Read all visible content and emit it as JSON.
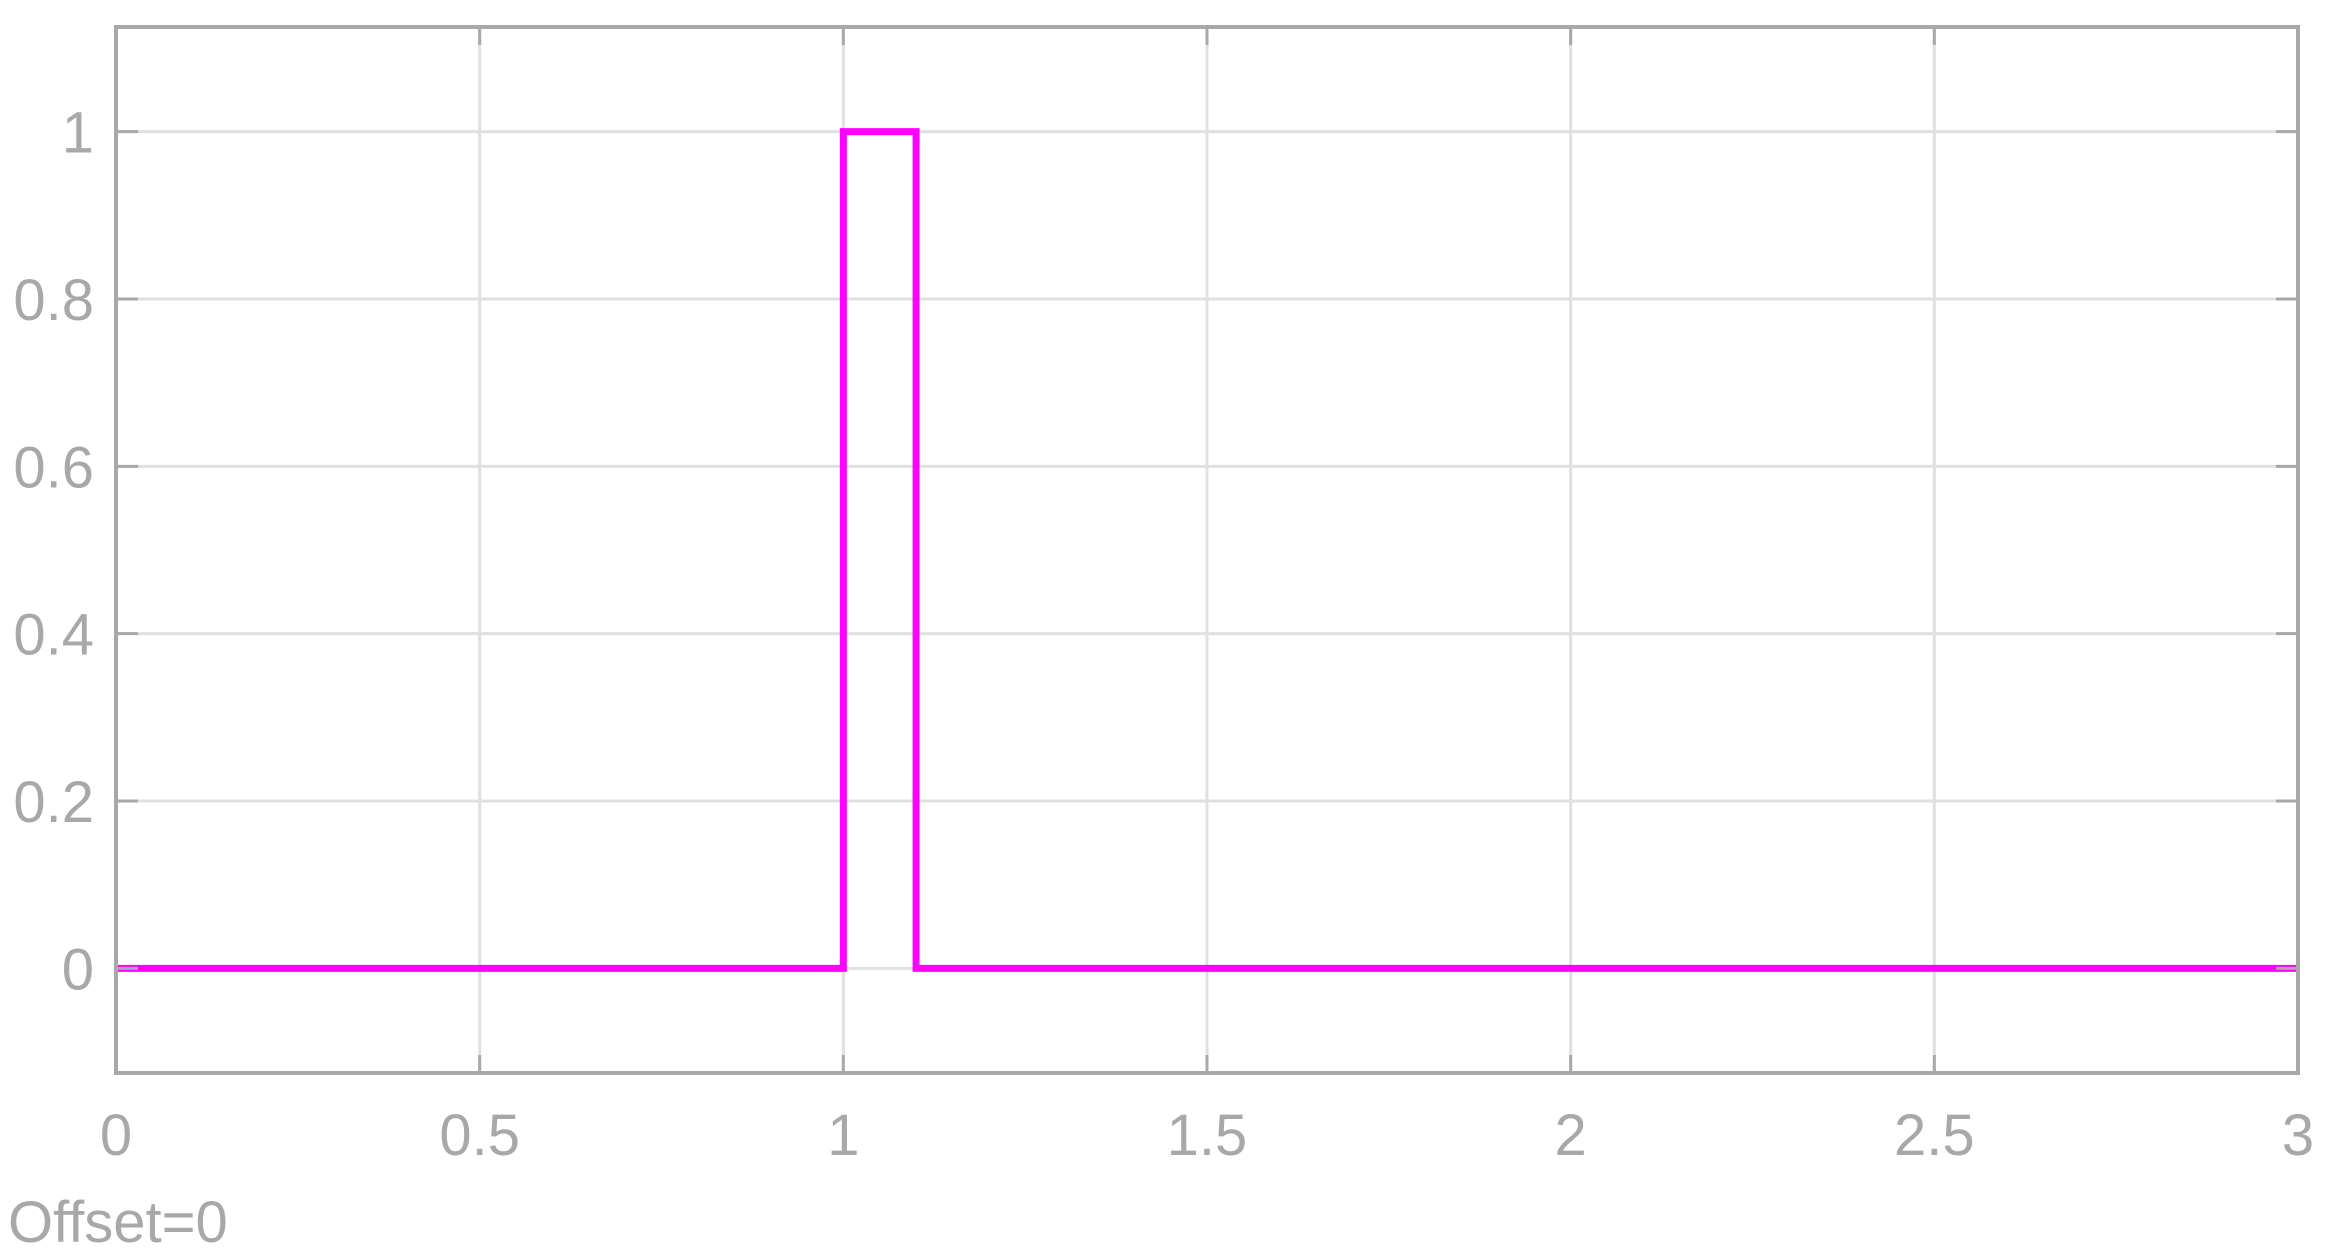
{
  "chart_data": {
    "type": "line",
    "step": true,
    "title": "",
    "xlabel": "",
    "ylabel": "",
    "xlim": [
      0,
      3
    ],
    "ylim": [
      -0.125,
      1.125
    ],
    "xticks": [
      0,
      0.5,
      1,
      1.5,
      2,
      2.5,
      3
    ],
    "xtick_labels": [
      "0",
      "0.5",
      "1",
      "1.5",
      "2",
      "2.5",
      "3"
    ],
    "yticks": [
      0,
      0.2,
      0.4,
      0.6,
      0.8,
      1
    ],
    "ytick_labels": [
      "0",
      "0.2",
      "0.4",
      "0.6",
      "0.8",
      "1"
    ],
    "grid": true,
    "series": [
      {
        "color": "#ff00ff",
        "x": [
          0,
          1,
          1,
          1.1,
          1.1,
          3
        ],
        "y": [
          0,
          0,
          1,
          1,
          0,
          0
        ]
      }
    ],
    "annotation": "Offset=0",
    "colors": {
      "axis": "#a8a8a8",
      "grid": "#e0e0e0",
      "tick_text": "#a8a8a8",
      "background": "#ffffff"
    }
  }
}
